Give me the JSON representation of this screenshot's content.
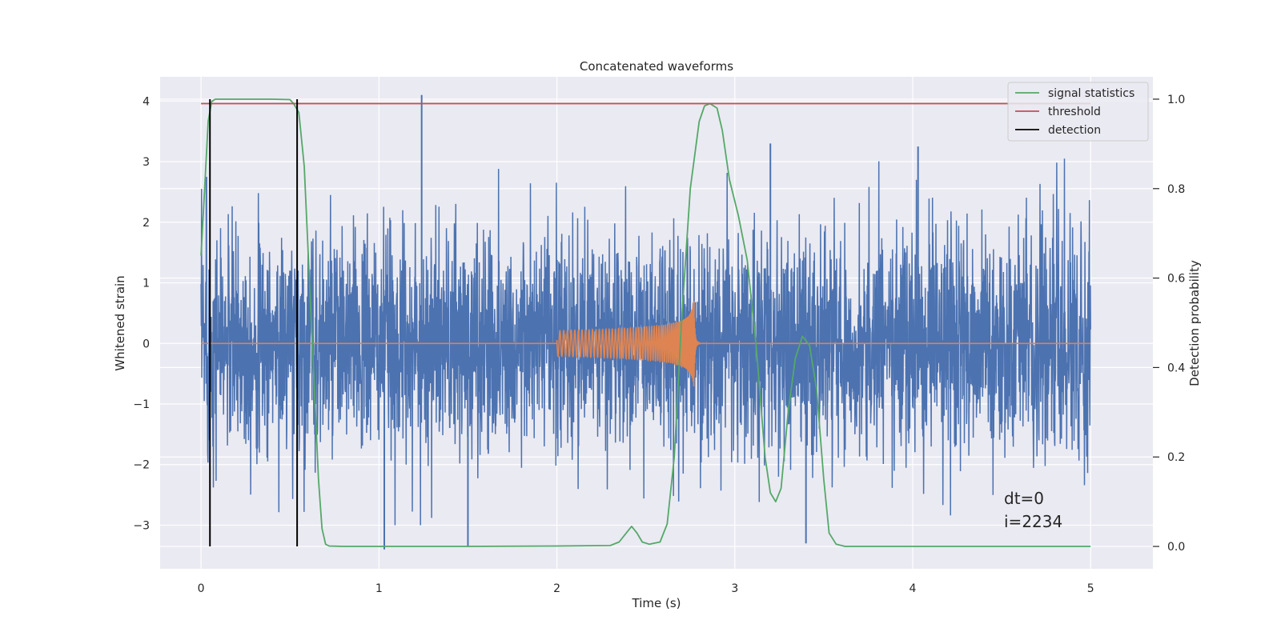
{
  "chart_data": {
    "type": "line",
    "title": "Concatenated waveforms",
    "xlabel": "Time (s)",
    "ylabel": "Whitened strain",
    "y2label": "Detection probability",
    "xlim": [
      -0.23,
      5.35
    ],
    "ylim": [
      -3.72,
      4.4
    ],
    "y2lim": [
      -0.05,
      1.05
    ],
    "xticks": [
      0,
      1,
      2,
      3,
      4,
      5
    ],
    "yticks": [
      -3,
      -2,
      -1,
      0,
      1,
      2,
      3,
      4
    ],
    "y2ticks": [
      0.0,
      0.2,
      0.4,
      0.6,
      0.8,
      1.0
    ],
    "grid": true,
    "legend_position": "top-right",
    "colors": {
      "noise": "#4c72b0",
      "signal": "#dd8452",
      "statistics": "#55a868",
      "threshold": "#c44e52",
      "detection": "#000000",
      "background": "#eaeaf2",
      "grid": "#ffffff"
    },
    "series": [
      {
        "name": "signal statistics",
        "axis": "right",
        "x": [
          0.0,
          0.02,
          0.04,
          0.06,
          0.08,
          0.12,
          0.2,
          0.3,
          0.4,
          0.5,
          0.52,
          0.55,
          0.58,
          0.62,
          0.66,
          0.68,
          0.7,
          0.72,
          0.8,
          1.0,
          1.5,
          2.0,
          2.3,
          2.35,
          2.38,
          2.42,
          2.45,
          2.48,
          2.52,
          2.58,
          2.62,
          2.66,
          2.7,
          2.75,
          2.8,
          2.83,
          2.86,
          2.9,
          2.93,
          2.97,
          3.02,
          3.07,
          3.12,
          3.17,
          3.2,
          3.23,
          3.26,
          3.3,
          3.34,
          3.38,
          3.42,
          3.46,
          3.5,
          3.53,
          3.57,
          3.62,
          3.7,
          4.0,
          4.5,
          5.0
        ],
        "y": [
          0.65,
          0.8,
          0.95,
          0.995,
          1.0,
          1.0,
          1.0,
          1.0,
          1.0,
          0.999,
          0.99,
          0.97,
          0.85,
          0.5,
          0.15,
          0.04,
          0.005,
          0.001,
          0.0,
          0.0,
          0.0,
          0.001,
          0.002,
          0.01,
          0.025,
          0.045,
          0.03,
          0.01,
          0.005,
          0.01,
          0.05,
          0.2,
          0.5,
          0.8,
          0.95,
          0.985,
          0.99,
          0.98,
          0.93,
          0.82,
          0.74,
          0.64,
          0.45,
          0.2,
          0.12,
          0.1,
          0.13,
          0.3,
          0.42,
          0.47,
          0.45,
          0.35,
          0.15,
          0.03,
          0.005,
          0.0,
          0.0,
          0.0,
          0.0,
          0.0
        ]
      },
      {
        "name": "threshold",
        "axis": "right",
        "x": [
          0.0,
          5.0
        ],
        "y": [
          0.99,
          0.99
        ]
      },
      {
        "name": "detection",
        "axis": "right",
        "x": [
          0.05,
          0.54
        ],
        "y": [
          0.0,
          1.0
        ]
      }
    ],
    "noise": {
      "x_range": [
        0.0,
        5.0
      ],
      "amplitude_sigma": 0.9,
      "spikes": [
        {
          "x": 0.03,
          "y": 2.75
        },
        {
          "x": 1.24,
          "y": 4.1
        },
        {
          "x": 1.03,
          "y": -3.4
        },
        {
          "x": 1.5,
          "y": -3.35
        },
        {
          "x": 3.4,
          "y": -3.3
        },
        {
          "x": 3.2,
          "y": 3.3
        },
        {
          "x": 4.03,
          "y": 3.25
        }
      ]
    },
    "signal": {
      "start": 2.0,
      "merger": 2.77,
      "max_amplitude": 0.75
    },
    "legend": [
      "signal statistics",
      "threshold",
      "detection"
    ],
    "annotation": [
      "dt=0",
      "i=2234"
    ]
  }
}
